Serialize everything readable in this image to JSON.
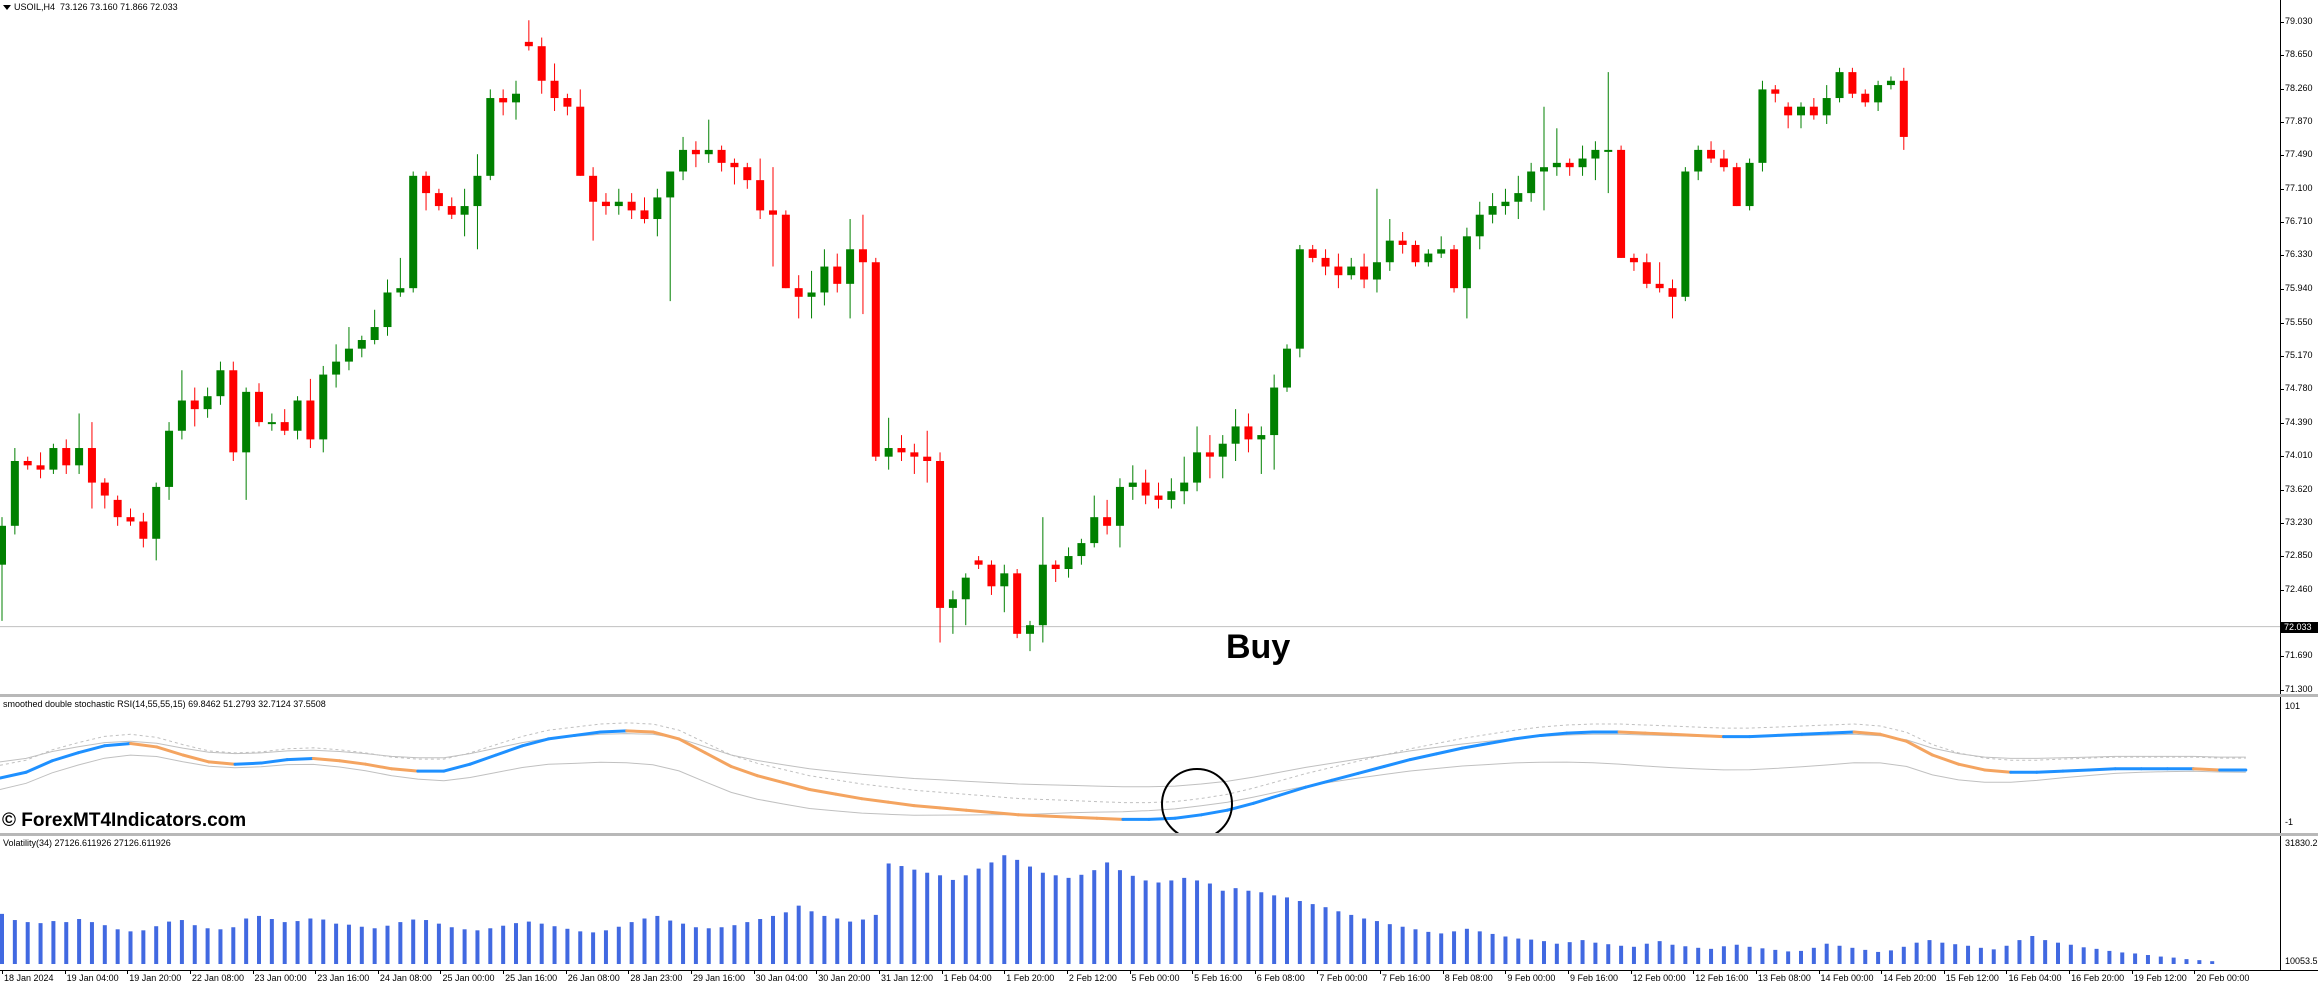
{
  "window": {
    "symbol_header": "USOIL,H4",
    "ohlc_header": "73.126 73.160 71.866 72.033"
  },
  "colors": {
    "bull": "#008000",
    "bear": "#ff0000",
    "stoch_blue": "#1e90ff",
    "stoch_orange": "#f4a460",
    "volatility_bar": "#4169e1",
    "grey_line": "#c0c0c0"
  },
  "annotations": {
    "buy_label": "Buy",
    "watermark": "© ForexMT4Indicators.com"
  },
  "indicators": {
    "stoch": {
      "label": "smoothed double stochastic RSI(14,55,55,15) 69.8462 51.2793 32.7124 37.5508",
      "axis_top": "101",
      "axis_bottom": "-1"
    },
    "volatility": {
      "label": "Volatility(34) 27126.611926 27126.611926",
      "axis_top": "31830.2",
      "axis_bottom": "10053.5"
    }
  },
  "chart_data": {
    "type": "candlestick",
    "title": "USOIL,H4",
    "current_price": "72.033",
    "price_axis_ticks": [
      "79.030",
      "78.650",
      "78.260",
      "77.870",
      "77.490",
      "77.100",
      "76.710",
      "76.330",
      "75.940",
      "75.550",
      "75.170",
      "74.780",
      "74.390",
      "74.010",
      "73.620",
      "73.230",
      "72.850",
      "72.460",
      "72.033",
      "71.690",
      "71.300"
    ],
    "ylim": [
      71.3,
      79.03
    ],
    "time_axis_ticks": [
      "18 Jan 2024",
      "19 Jan 04:00",
      "19 Jan 20:00",
      "22 Jan 08:00",
      "23 Jan 00:00",
      "23 Jan 16:00",
      "24 Jan 08:00",
      "25 Jan 00:00",
      "25 Jan 16:00",
      "26 Jan 08:00",
      "28 Jan 23:00",
      "29 Jan 16:00",
      "30 Jan 04:00",
      "30 Jan 20:00",
      "31 Jan 12:00",
      "1 Feb 04:00",
      "1 Feb 20:00",
      "2 Feb 12:00",
      "5 Feb 00:00",
      "5 Feb 16:00",
      "6 Feb 08:00",
      "7 Feb 00:00",
      "7 Feb 16:00",
      "8 Feb 08:00",
      "9 Feb 00:00",
      "9 Feb 16:00",
      "12 Feb 00:00",
      "12 Feb 16:00",
      "13 Feb 08:00",
      "14 Feb 00:00",
      "14 Feb 20:00",
      "15 Feb 12:00",
      "16 Feb 04:00",
      "16 Feb 20:00",
      "19 Feb 12:00",
      "20 Feb 00:00"
    ],
    "candles": [
      [
        72.75,
        73.3,
        72.1,
        73.2
      ],
      [
        73.2,
        74.1,
        73.1,
        73.95
      ],
      [
        73.95,
        74.0,
        73.85,
        73.9
      ],
      [
        73.9,
        74.05,
        73.75,
        73.85
      ],
      [
        73.85,
        74.15,
        73.8,
        74.1
      ],
      [
        74.1,
        74.2,
        73.8,
        73.9
      ],
      [
        73.9,
        74.5,
        73.8,
        74.1
      ],
      [
        74.1,
        74.4,
        73.4,
        73.7
      ],
      [
        73.7,
        73.75,
        73.4,
        73.55
      ],
      [
        73.5,
        73.55,
        73.2,
        73.3
      ],
      [
        73.3,
        73.4,
        73.2,
        73.25
      ],
      [
        73.25,
        73.35,
        72.95,
        73.05
      ],
      [
        73.05,
        73.7,
        72.8,
        73.65
      ],
      [
        73.65,
        74.4,
        73.5,
        74.3
      ],
      [
        74.3,
        75.0,
        74.2,
        74.65
      ],
      [
        74.65,
        74.8,
        74.35,
        74.55
      ],
      [
        74.55,
        74.8,
        74.45,
        74.7
      ],
      [
        74.7,
        75.1,
        74.6,
        75.0
      ],
      [
        75.0,
        75.1,
        73.95,
        74.05
      ],
      [
        74.05,
        74.8,
        73.5,
        74.75
      ],
      [
        74.75,
        74.85,
        74.35,
        74.4
      ],
      [
        74.4,
        74.5,
        74.3,
        74.4
      ],
      [
        74.4,
        74.55,
        74.25,
        74.3
      ],
      [
        74.3,
        74.7,
        74.2,
        74.65
      ],
      [
        74.65,
        74.9,
        74.1,
        74.2
      ],
      [
        74.2,
        75.05,
        74.05,
        74.95
      ],
      [
        74.95,
        75.3,
        74.8,
        75.1
      ],
      [
        75.1,
        75.5,
        75.0,
        75.25
      ],
      [
        75.25,
        75.4,
        75.15,
        75.35
      ],
      [
        75.35,
        75.7,
        75.3,
        75.5
      ],
      [
        75.5,
        76.05,
        75.4,
        75.9
      ],
      [
        75.9,
        76.3,
        75.85,
        75.95
      ],
      [
        75.95,
        77.3,
        75.9,
        77.25
      ],
      [
        77.25,
        77.3,
        76.85,
        77.05
      ],
      [
        77.05,
        77.1,
        76.85,
        76.9
      ],
      [
        76.9,
        77.0,
        76.75,
        76.8
      ],
      [
        76.8,
        77.1,
        76.55,
        76.9
      ],
      [
        76.9,
        77.5,
        76.4,
        77.25
      ],
      [
        77.25,
        78.25,
        77.2,
        78.15
      ],
      [
        78.15,
        78.25,
        77.95,
        78.1
      ],
      [
        78.1,
        78.35,
        77.9,
        78.2
      ],
      [
        78.8,
        79.05,
        78.7,
        78.75
      ],
      [
        78.75,
        78.85,
        78.2,
        78.35
      ],
      [
        78.35,
        78.55,
        78.0,
        78.15
      ],
      [
        78.15,
        78.2,
        77.95,
        78.05
      ],
      [
        78.05,
        78.25,
        77.25,
        77.25
      ],
      [
        77.25,
        77.35,
        76.5,
        76.95
      ],
      [
        76.95,
        77.05,
        76.8,
        76.9
      ],
      [
        76.9,
        77.1,
        76.8,
        76.95
      ],
      [
        76.95,
        77.05,
        76.75,
        76.85
      ],
      [
        76.85,
        77.0,
        76.7,
        76.75
      ],
      [
        76.75,
        77.1,
        76.55,
        77.0
      ],
      [
        77.0,
        77.3,
        75.8,
        77.3
      ],
      [
        77.3,
        77.7,
        77.2,
        77.55
      ],
      [
        77.55,
        77.65,
        77.35,
        77.5
      ],
      [
        77.5,
        77.9,
        77.4,
        77.55
      ],
      [
        77.55,
        77.6,
        77.3,
        77.4
      ],
      [
        77.4,
        77.45,
        77.15,
        77.35
      ],
      [
        77.35,
        77.4,
        77.1,
        77.2
      ],
      [
        77.2,
        77.45,
        76.75,
        76.85
      ],
      [
        76.85,
        77.35,
        76.2,
        76.8
      ],
      [
        76.8,
        76.85,
        75.95,
        75.95
      ],
      [
        75.95,
        76.1,
        75.6,
        75.85
      ],
      [
        75.85,
        76.15,
        75.6,
        75.9
      ],
      [
        75.9,
        76.4,
        75.75,
        76.2
      ],
      [
        76.2,
        76.35,
        75.9,
        76.0
      ],
      [
        76.0,
        76.75,
        75.6,
        76.4
      ],
      [
        76.4,
        76.8,
        75.65,
        76.25
      ],
      [
        76.25,
        76.3,
        73.95,
        74.0
      ],
      [
        74.0,
        74.45,
        73.85,
        74.1
      ],
      [
        74.1,
        74.25,
        73.95,
        74.05
      ],
      [
        74.05,
        74.15,
        73.8,
        74.0
      ],
      [
        74.0,
        74.3,
        73.7,
        73.95
      ],
      [
        73.95,
        74.05,
        71.85,
        72.25
      ],
      [
        72.25,
        72.45,
        71.95,
        72.35
      ],
      [
        72.35,
        72.65,
        72.05,
        72.6
      ],
      [
        72.8,
        72.85,
        72.7,
        72.75
      ],
      [
        72.75,
        72.8,
        72.4,
        72.5
      ],
      [
        72.5,
        72.75,
        72.2,
        72.65
      ],
      [
        72.65,
        72.7,
        71.9,
        71.95
      ],
      [
        71.95,
        72.1,
        71.75,
        72.05
      ],
      [
        72.05,
        73.3,
        71.85,
        72.75
      ],
      [
        72.75,
        72.8,
        72.55,
        72.7
      ],
      [
        72.7,
        72.95,
        72.6,
        72.85
      ],
      [
        72.85,
        73.05,
        72.75,
        73.0
      ],
      [
        73.0,
        73.55,
        72.95,
        73.3
      ],
      [
        73.3,
        73.5,
        73.1,
        73.2
      ],
      [
        73.2,
        73.75,
        72.95,
        73.65
      ],
      [
        73.65,
        73.9,
        73.5,
        73.7
      ],
      [
        73.7,
        73.85,
        73.45,
        73.55
      ],
      [
        73.55,
        73.7,
        73.4,
        73.5
      ],
      [
        73.5,
        73.75,
        73.4,
        73.6
      ],
      [
        73.6,
        74.0,
        73.45,
        73.7
      ],
      [
        73.7,
        74.35,
        73.6,
        74.05
      ],
      [
        74.05,
        74.25,
        73.75,
        74.0
      ],
      [
        74.0,
        74.25,
        73.75,
        74.15
      ],
      [
        74.15,
        74.55,
        73.95,
        74.35
      ],
      [
        74.35,
        74.5,
        74.05,
        74.2
      ],
      [
        74.2,
        74.35,
        73.8,
        74.25
      ],
      [
        74.25,
        74.95,
        73.85,
        74.8
      ],
      [
        74.8,
        75.3,
        74.75,
        75.25
      ],
      [
        75.25,
        76.45,
        75.15,
        76.4
      ],
      [
        76.4,
        76.45,
        76.25,
        76.3
      ],
      [
        76.3,
        76.4,
        76.1,
        76.2
      ],
      [
        76.2,
        76.35,
        75.95,
        76.1
      ],
      [
        76.1,
        76.3,
        76.05,
        76.2
      ],
      [
        76.2,
        76.35,
        75.95,
        76.05
      ],
      [
        76.05,
        77.1,
        75.9,
        76.25
      ],
      [
        76.25,
        76.75,
        76.15,
        76.5
      ],
      [
        76.5,
        76.6,
        76.35,
        76.45
      ],
      [
        76.45,
        76.5,
        76.2,
        76.25
      ],
      [
        76.25,
        76.4,
        76.2,
        76.35
      ],
      [
        76.35,
        76.55,
        76.3,
        76.4
      ],
      [
        76.4,
        76.45,
        75.9,
        75.95
      ],
      [
        75.95,
        76.65,
        75.6,
        76.55
      ],
      [
        76.55,
        76.95,
        76.4,
        76.8
      ],
      [
        76.8,
        77.05,
        76.7,
        76.9
      ],
      [
        76.9,
        77.1,
        76.8,
        76.95
      ],
      [
        76.95,
        77.25,
        76.75,
        77.05
      ],
      [
        77.05,
        77.4,
        76.95,
        77.3
      ],
      [
        77.3,
        78.05,
        76.85,
        77.35
      ],
      [
        77.35,
        77.8,
        77.25,
        77.4
      ],
      [
        77.4,
        77.45,
        77.25,
        77.35
      ],
      [
        77.35,
        77.6,
        77.25,
        77.45
      ],
      [
        77.45,
        77.65,
        77.2,
        77.55
      ],
      [
        77.55,
        78.45,
        77.05,
        77.55
      ],
      [
        77.55,
        77.6,
        76.3,
        76.3
      ],
      [
        76.3,
        76.35,
        76.15,
        76.25
      ],
      [
        76.25,
        76.35,
        75.95,
        76.0
      ],
      [
        76.0,
        76.25,
        75.9,
        75.95
      ],
      [
        75.95,
        76.05,
        75.6,
        75.85
      ],
      [
        75.85,
        77.35,
        75.8,
        77.3
      ],
      [
        77.3,
        77.6,
        77.2,
        77.55
      ],
      [
        77.55,
        77.65,
        77.4,
        77.45
      ],
      [
        77.45,
        77.55,
        77.3,
        77.35
      ],
      [
        77.35,
        77.4,
        76.9,
        76.9
      ],
      [
        76.9,
        77.45,
        76.85,
        77.4
      ],
      [
        77.4,
        78.35,
        77.3,
        78.25
      ],
      [
        78.25,
        78.3,
        78.1,
        78.2
      ],
      [
        78.05,
        78.1,
        77.8,
        77.95
      ],
      [
        77.95,
        78.1,
        77.8,
        78.05
      ],
      [
        78.05,
        78.15,
        77.9,
        77.95
      ],
      [
        77.95,
        78.3,
        77.85,
        78.15
      ],
      [
        78.15,
        78.5,
        78.1,
        78.45
      ],
      [
        78.45,
        78.5,
        78.15,
        78.2
      ],
      [
        78.2,
        78.25,
        78.05,
        78.1
      ],
      [
        78.1,
        78.35,
        78.0,
        78.3
      ],
      [
        78.3,
        78.4,
        78.25,
        78.35
      ],
      [
        78.35,
        78.5,
        77.55,
        77.7
      ]
    ],
    "stoch_series": {
      "blue_orange_main": [
        40,
        45,
        55,
        62,
        68,
        70,
        67,
        60,
        54,
        52,
        53,
        56,
        57,
        55,
        52,
        48,
        46,
        46,
        52,
        60,
        68,
        74,
        77,
        80,
        81,
        80,
        74,
        62,
        50,
        42,
        36,
        30,
        26,
        22,
        19,
        16,
        14,
        12,
        10,
        8,
        7,
        6,
        5,
        4,
        4,
        5,
        8,
        12,
        18,
        25,
        32,
        38,
        44,
        50,
        56,
        61,
        66,
        70,
        74,
        77,
        79,
        80,
        80,
        79,
        78,
        77,
        76,
        76,
        77,
        78,
        79,
        80,
        78,
        72,
        60,
        52,
        47,
        45,
        45,
        46,
        47,
        48,
        48,
        48,
        48,
        47,
        47
      ]
    },
    "volatility_values": [
      19800,
      18600,
      18200,
      18000,
      18400,
      18200,
      18800,
      18200,
      17600,
      16800,
      16400,
      16600,
      17400,
      18300,
      18600,
      17600,
      17000,
      16800,
      17200,
      18900,
      19400,
      18800,
      18200,
      18400,
      18900,
      18700,
      17900,
      17700,
      17300,
      17000,
      17500,
      18200,
      18700,
      18600,
      17900,
      17200,
      16800,
      16600,
      17000,
      17500,
      18000,
      18300,
      17900,
      17400,
      16900,
      16400,
      16200,
      16600,
      17300,
      18200,
      18900,
      19400,
      18500,
      17900,
      17200,
      17000,
      17200,
      17600,
      18200,
      18800,
      19400,
      20100,
      21400,
      20300,
      19400,
      18900,
      18300,
      18700,
      19600,
      29600,
      29100,
      28400,
      27800,
      27300,
      26400,
      27300,
      28600,
      29800,
      31200,
      30300,
      29000,
      27800,
      27300,
      26800,
      27400,
      28300,
      29800,
      28300,
      27200,
      26300,
      25900,
      26300,
      26800,
      26300,
      25700,
      24300,
      24800,
      24300,
      24000,
      23400,
      23000,
      22300,
      21700,
      21100,
      20300,
      19600,
      18900,
      18400,
      17800,
      17300,
      16800,
      16300,
      16000,
      16400,
      16900,
      16400,
      15900,
      15400,
      15000,
      14800,
      14500,
      14000,
      14300,
      14700,
      14200,
      13900,
      13600,
      13400,
      14000,
      14500,
      13800,
      13500,
      13200,
      13000,
      13500,
      13800,
      13400,
      13100,
      12800,
      12500,
      12600,
      13200,
      14000,
      13600,
      13200,
      12800,
      12400,
      12700,
      13400,
      14200,
      14700,
      14200,
      13900,
      13600,
      13200,
      12900,
      13600,
      14700,
      15500,
      14700,
      14200,
      13800,
      13300,
      13000,
      12600,
      12300,
      12100,
      11800,
      11500,
      11300,
      11000,
      10800,
      10600
    ]
  }
}
